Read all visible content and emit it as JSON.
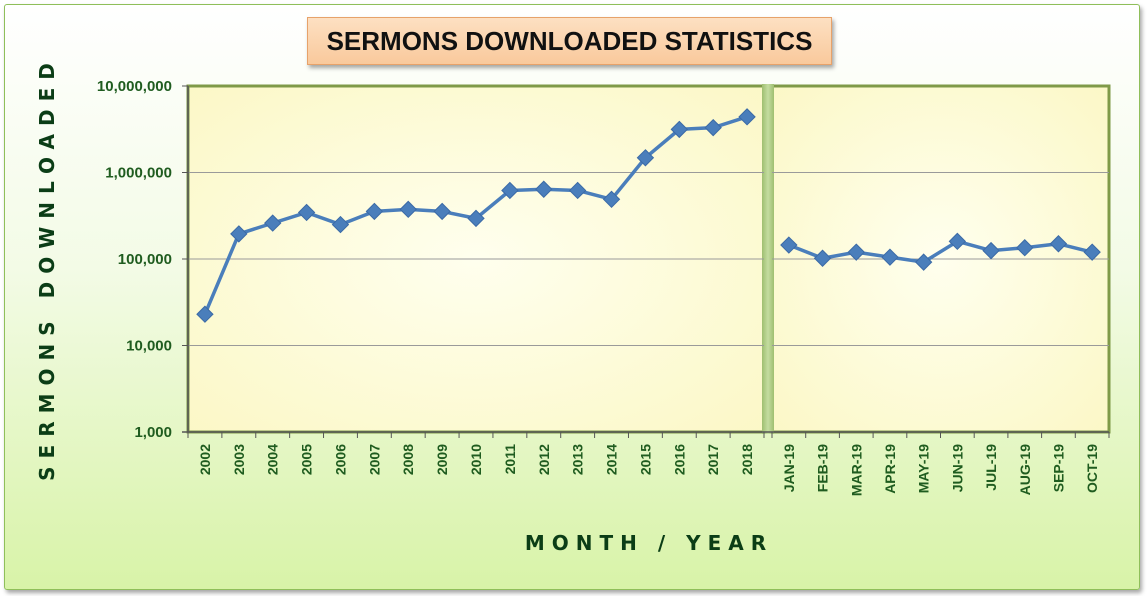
{
  "chart_data": {
    "type": "line",
    "title": "SERMONS DOWNLOADED STATISTICS",
    "ylabel": "SERMONS DOWNLOADED",
    "xlabel": "MONTH / YEAR",
    "yscale": "log",
    "ylim": [
      1000,
      10000000
    ],
    "yticks": [
      "1,000",
      "10,000",
      "100,000",
      "1,000,000",
      "10,000,000"
    ],
    "grid": true,
    "line_color": "#4a7ebb",
    "marker": "diamond",
    "panels": [
      {
        "name": "yearly",
        "categories": [
          "2002",
          "2003",
          "2004",
          "2005",
          "2006",
          "2007",
          "2008",
          "2009",
          "2010",
          "2011",
          "2012",
          "2013",
          "2014",
          "2015",
          "2016",
          "2017",
          "2018"
        ],
        "values": [
          23000,
          195000,
          260000,
          345000,
          250000,
          355000,
          375000,
          355000,
          295000,
          620000,
          640000,
          620000,
          490000,
          1480000,
          3150000,
          3300000,
          4400000
        ]
      },
      {
        "name": "monthly",
        "categories": [
          "JAN-19",
          "FEB-19",
          "MAR-19",
          "APR-19",
          "MAY-19",
          "JUN-19",
          "JUL-19",
          "AUG-19",
          "SEP-19",
          "OCT-19"
        ],
        "values": [
          145000,
          102000,
          120000,
          105000,
          92000,
          160000,
          125000,
          135000,
          150000,
          120000
        ]
      }
    ]
  }
}
